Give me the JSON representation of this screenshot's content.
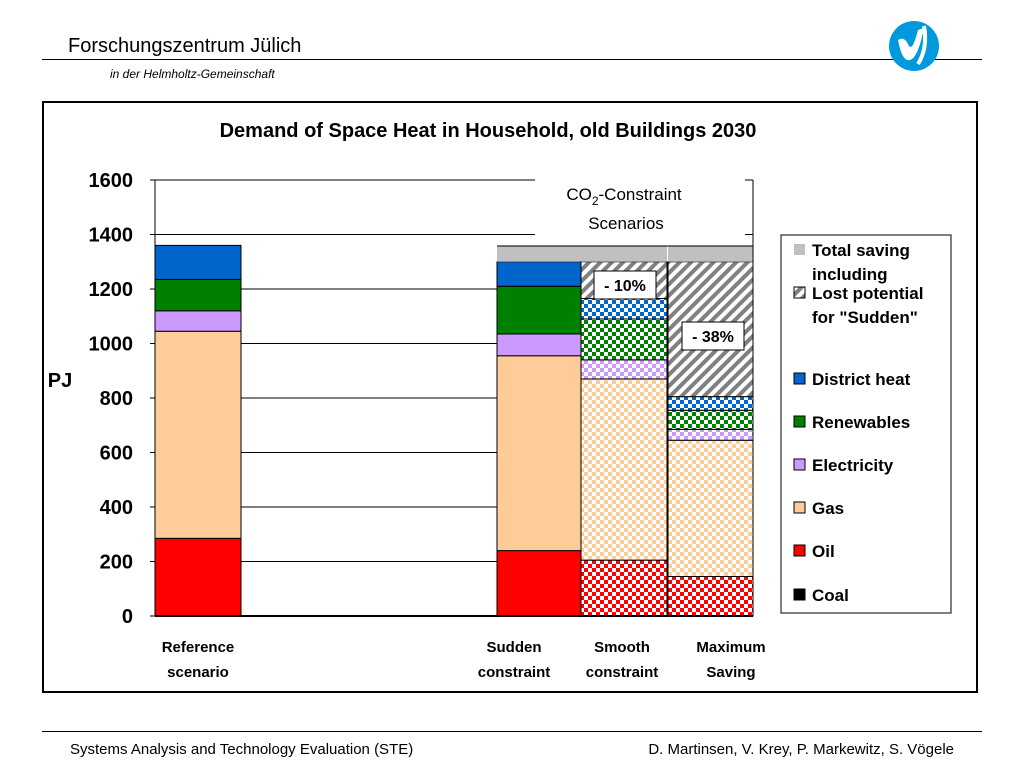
{
  "header": {
    "title": "Forschungszentrum Jülich",
    "subtitle": "in der Helmholtz-Gemeinschaft",
    "logo_icon": "fzj-logo-icon"
  },
  "footer": {
    "left": "Systems Analysis and Technology Evaluation (STE)",
    "right": "D. Martinsen, V. Krey, P. Markewitz, S. Vögele"
  },
  "chart_data": {
    "type": "bar",
    "stacked": true,
    "title": "Demand of Space Heat in Household, old Buildings 2030",
    "ylabel": "PJ",
    "xlabel": "",
    "ylim": [
      0,
      1600
    ],
    "yticks": [
      0,
      200,
      400,
      600,
      800,
      1000,
      1200,
      1400,
      1600
    ],
    "grid": true,
    "categories": [
      {
        "line1": "Reference",
        "line2": "scenario"
      },
      {
        "line1": "Sudden",
        "line2": "constraint"
      },
      {
        "line1": "Smooth",
        "line2": "constraint"
      },
      {
        "line1": "Maximum",
        "line2": "Saving"
      }
    ],
    "series": [
      {
        "name": "Coal",
        "key": "coal",
        "color": "#000000",
        "values": [
          0,
          0,
          0,
          0
        ]
      },
      {
        "name": "Oil",
        "key": "oil",
        "color": "#ff0000",
        "values": [
          285,
          240,
          205,
          145
        ]
      },
      {
        "name": "Gas",
        "key": "gas",
        "color": "#ffcc99",
        "values": [
          760,
          715,
          665,
          500
        ]
      },
      {
        "name": "Electricity",
        "key": "electricity",
        "color": "#cc99ff",
        "values": [
          75,
          80,
          70,
          40
        ]
      },
      {
        "name": "Renewables",
        "key": "renewables",
        "color": "#008000",
        "values": [
          115,
          175,
          150,
          70
        ]
      },
      {
        "name": "District heat",
        "key": "district_heat",
        "color": "#0066cc",
        "values": [
          125,
          90,
          75,
          50
        ]
      },
      {
        "name": "Lost potential for \"Sudden\"",
        "key": "lost_potential",
        "color": "#999999",
        "values": [
          0,
          0,
          135,
          495
        ]
      },
      {
        "name": "Total saving including",
        "key": "total_saving",
        "color": "#c0c0c0",
        "values": [
          0,
          60,
          60,
          60
        ]
      }
    ],
    "legend": {
      "placement": "right",
      "entries": [
        {
          "lines": [
            "Total saving",
            "including"
          ],
          "key": "total_saving"
        },
        {
          "lines": [
            "Lost potential",
            "for \"Sudden\""
          ],
          "key": "lost_potential"
        },
        {
          "lines": [
            "District heat"
          ],
          "key": "district_heat"
        },
        {
          "lines": [
            "Renewables"
          ],
          "key": "renewables"
        },
        {
          "lines": [
            "Electricity"
          ],
          "key": "electricity"
        },
        {
          "lines": [
            "Gas"
          ],
          "key": "gas"
        },
        {
          "lines": [
            "Oil"
          ],
          "key": "oil"
        },
        {
          "lines": [
            "Coal"
          ],
          "key": "coal"
        }
      ]
    },
    "annotations": [
      {
        "text": "- 10%",
        "category_index": 2
      },
      {
        "text": "- 38%",
        "category_index": 3
      }
    ],
    "scenario_box": {
      "line1_main": "CO",
      "line1_sub": "2",
      "line1_rest": "-Constraint",
      "line2": "Scenarios"
    }
  }
}
